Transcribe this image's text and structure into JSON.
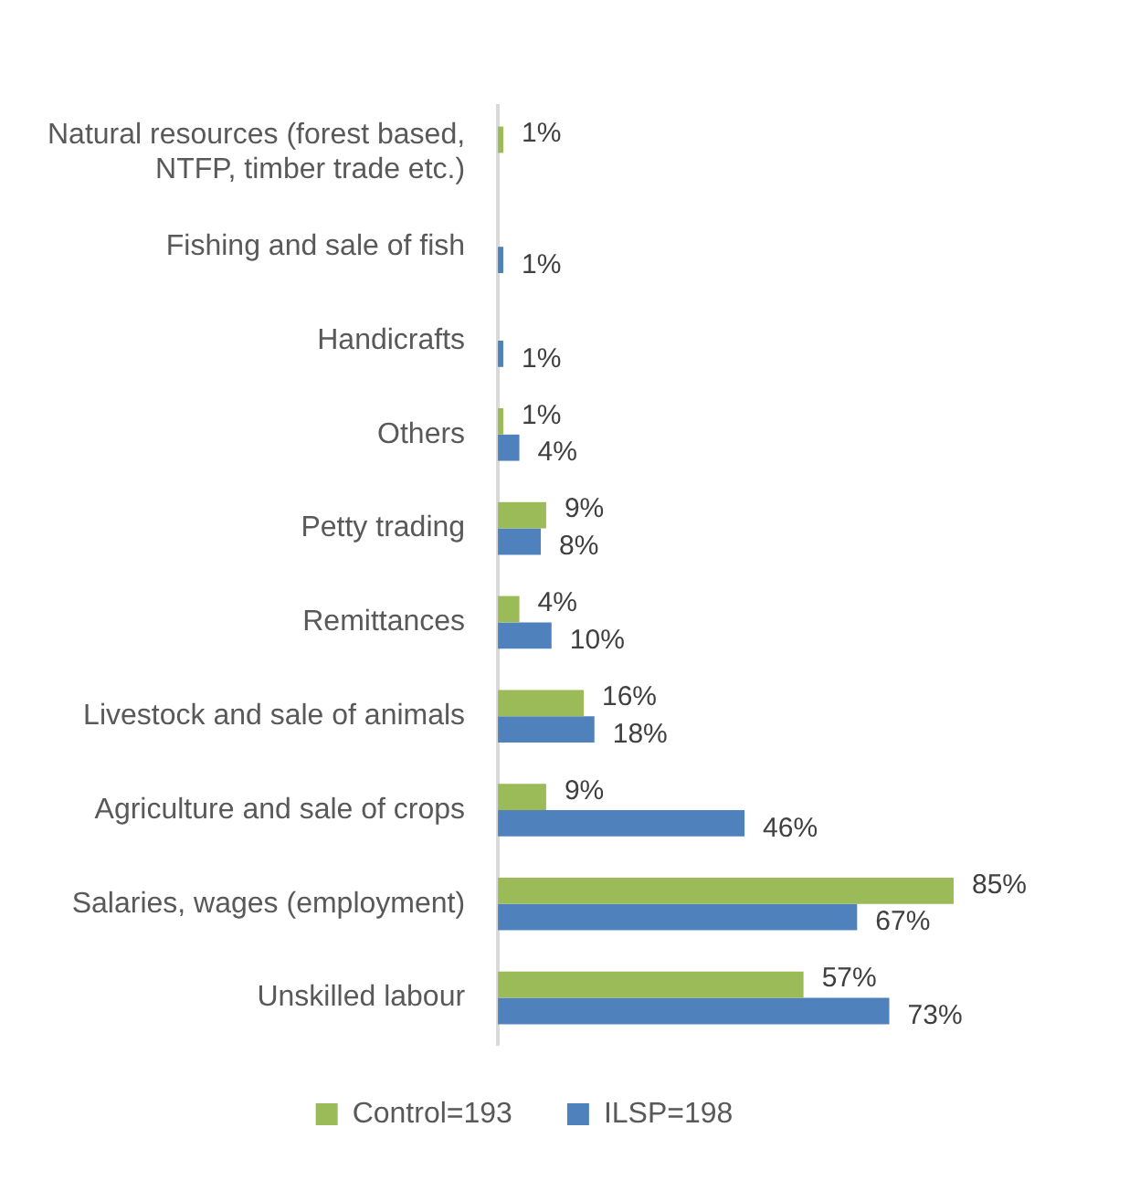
{
  "chart_data": {
    "type": "bar",
    "orientation": "horizontal",
    "categories": [
      "Natural resources (forest based, NTFP, timber trade etc.)",
      "Fishing and sale of fish",
      "Handicrafts",
      "Others",
      "Petty trading",
      "Remittances",
      "Livestock and sale of animals",
      "Agriculture and sale of crops",
      "Salaries, wages (employment)",
      "Unskilled labour"
    ],
    "series": [
      {
        "name": "Control=193",
        "color": "#9bbb59",
        "values": [
          1,
          null,
          null,
          1,
          9,
          4,
          16,
          9,
          85,
          57
        ],
        "value_labels": [
          "1%",
          null,
          null,
          "1%",
          "9%",
          "4%",
          "16%",
          "9%",
          "85%",
          "57%"
        ]
      },
      {
        "name": "ILSP=198",
        "color": "#4f81bd",
        "values": [
          null,
          1,
          1,
          4,
          8,
          10,
          18,
          46,
          67,
          73
        ],
        "value_labels": [
          null,
          "1%",
          "1%",
          "4%",
          "8%",
          "10%",
          "18%",
          "46%",
          "67%",
          "73%"
        ]
      }
    ],
    "legend": "bottom",
    "grid": false
  }
}
